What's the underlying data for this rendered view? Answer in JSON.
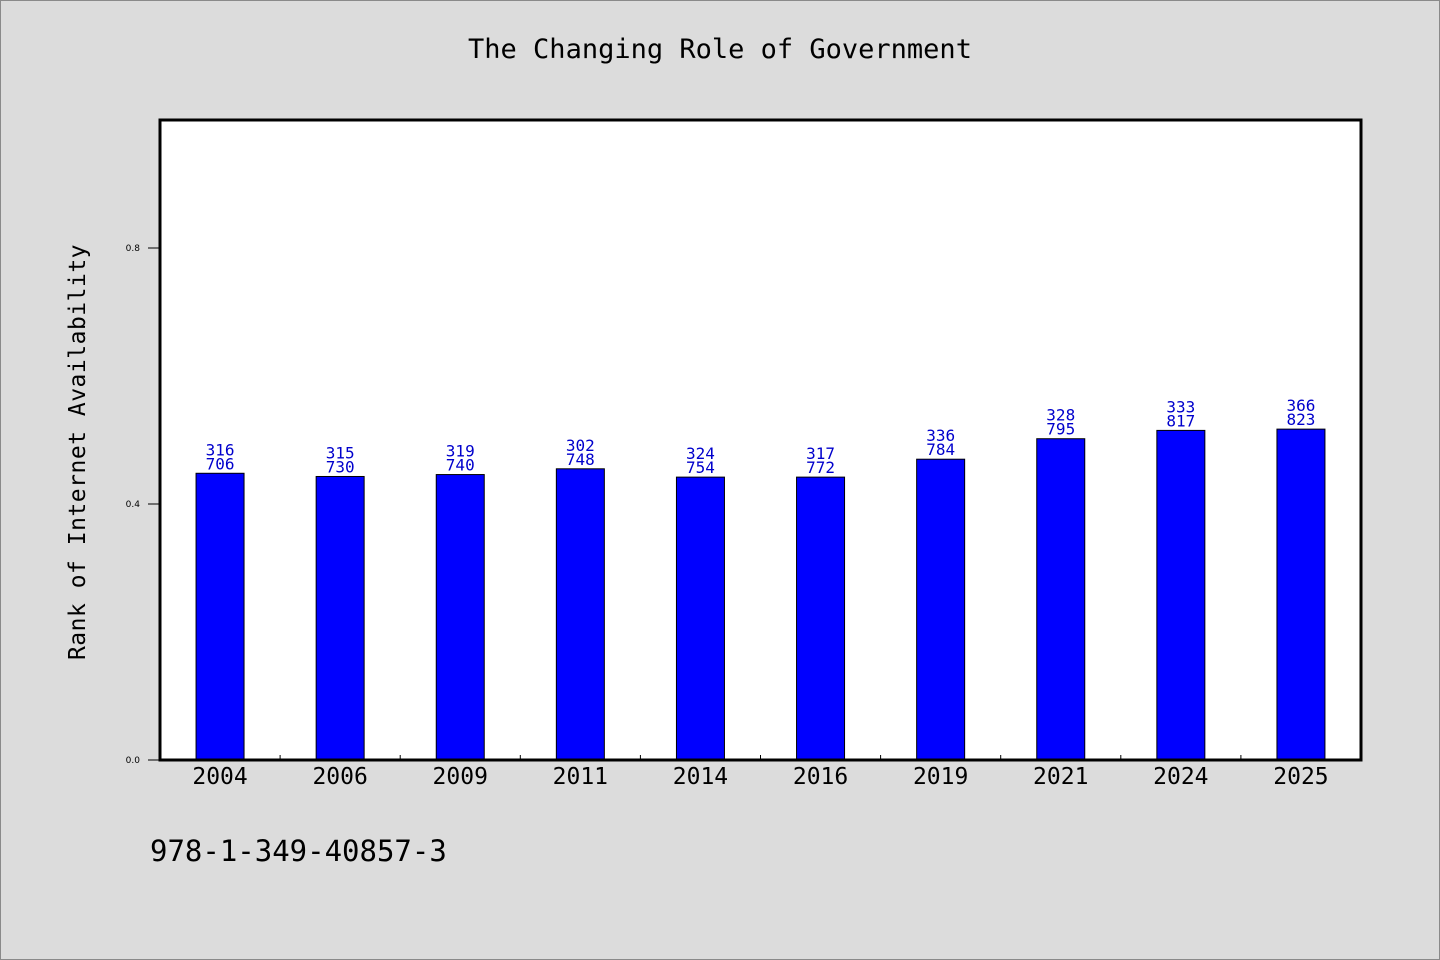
{
  "page": {
    "title": "The Changing Role of Government",
    "footer_text": "978-1-349-40857-3"
  },
  "chart_data": {
    "type": "bar",
    "title": "The Changing Role of Government",
    "xlabel": "",
    "ylabel": "Rank of Internet Availability",
    "ylim": [
      0,
      1.0
    ],
    "yticks": [
      0.0,
      0.4,
      0.8
    ],
    "ytick_labels": [
      "0.0",
      "0.4",
      "0.8"
    ],
    "grid": false,
    "bar_color": "#0000ff",
    "label_color": "#0000cc",
    "categories": [
      "2004",
      "2006",
      "2009",
      "2011",
      "2014",
      "2016",
      "2019",
      "2021",
      "2024",
      "2025"
    ],
    "values": [
      0.448,
      0.443,
      0.446,
      0.455,
      0.442,
      0.442,
      0.47,
      0.502,
      0.515,
      0.517
    ],
    "data_labels": [
      [
        "316",
        "706"
      ],
      [
        "315",
        "730"
      ],
      [
        "319",
        "740"
      ],
      [
        "302",
        "748"
      ],
      [
        "324",
        "754"
      ],
      [
        "317",
        "772"
      ],
      [
        "336",
        "784"
      ],
      [
        "328",
        "795"
      ],
      [
        "333",
        "817"
      ],
      [
        "366",
        "823"
      ]
    ]
  }
}
